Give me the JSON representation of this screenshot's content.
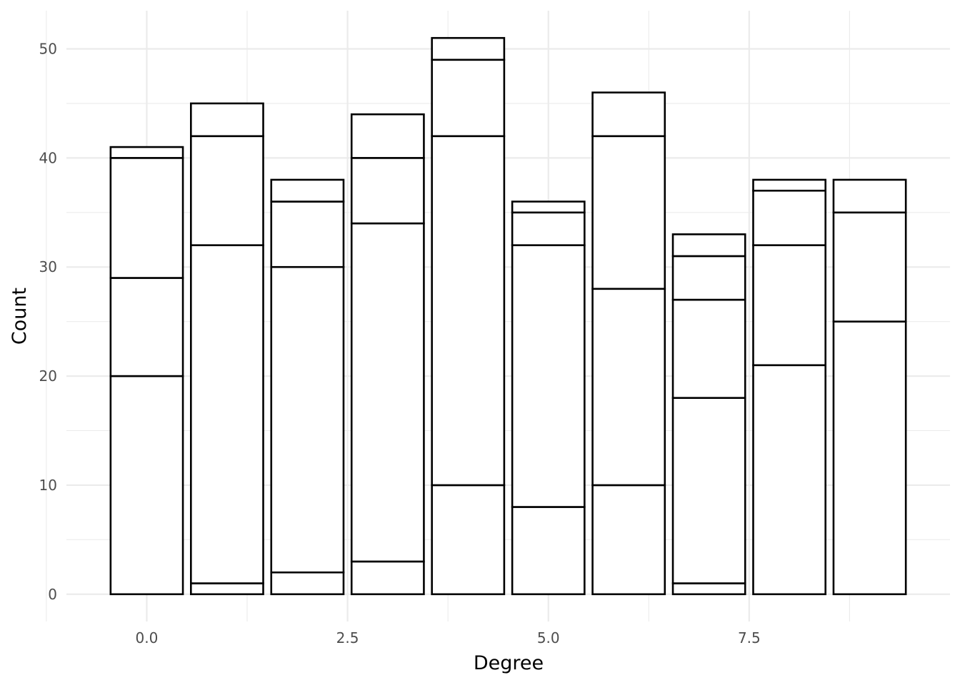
{
  "chart_data": {
    "type": "bar",
    "stacked": true,
    "xlabel": "Degree",
    "ylabel": "Count",
    "x": [
      0,
      1,
      2,
      3,
      4,
      5,
      6,
      7,
      8,
      9
    ],
    "xlim": [
      -1,
      10
    ],
    "ylim": [
      -2.5,
      53.5
    ],
    "x_ticks": [
      0.0,
      2.5,
      5.0,
      7.5
    ],
    "x_tick_labels": [
      "0.0",
      "2.5",
      "5.0",
      "7.5"
    ],
    "y_ticks": [
      0,
      10,
      20,
      30,
      40,
      50
    ],
    "y_tick_labels": [
      "0",
      "10",
      "20",
      "30",
      "40",
      "50"
    ],
    "grid": true,
    "legend": "none",
    "fill_color": "#ffffff",
    "outline_color": "#000000",
    "grid_color": "#ebebeb",
    "stack_boundaries": [
      [
        0,
        20,
        29,
        40,
        41
      ],
      [
        0,
        1,
        32,
        42,
        45
      ],
      [
        0,
        2,
        30,
        36,
        38
      ],
      [
        0,
        3,
        34,
        40,
        44
      ],
      [
        0,
        10,
        42,
        49,
        51
      ],
      [
        0,
        8,
        32,
        35,
        36
      ],
      [
        0,
        10,
        28,
        42,
        46
      ],
      [
        0,
        1,
        18,
        27,
        31,
        33
      ],
      [
        0,
        21,
        32,
        37,
        38
      ],
      [
        0,
        25,
        35,
        38
      ]
    ],
    "totals": [
      41,
      45,
      38,
      44,
      51,
      36,
      46,
      33,
      38,
      38
    ]
  }
}
